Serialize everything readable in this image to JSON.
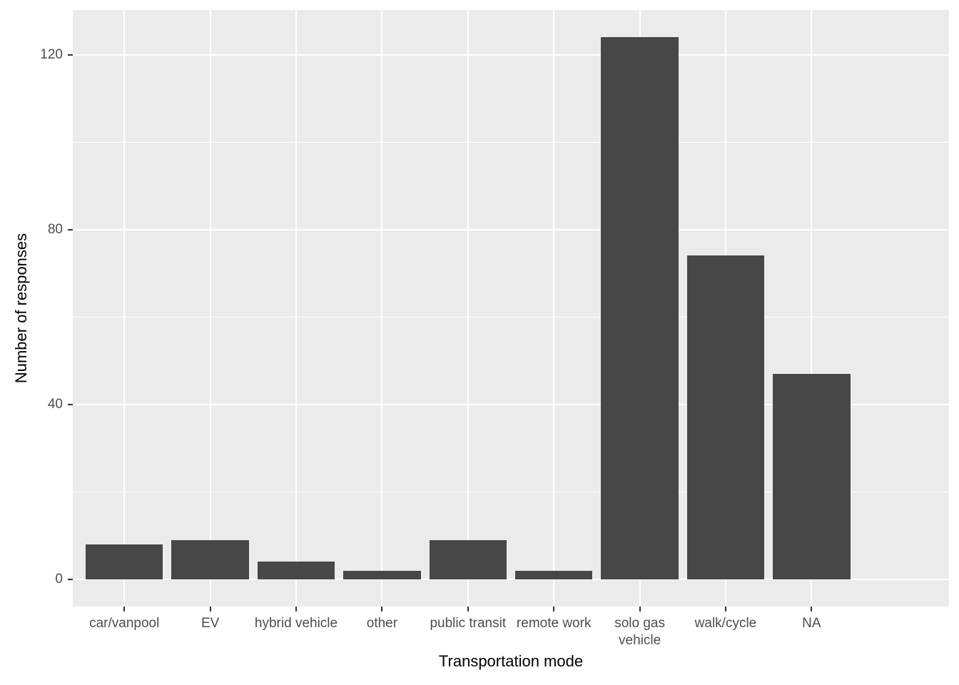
{
  "chart_data": {
    "type": "bar",
    "title": "",
    "xlabel": "Transportation mode",
    "ylabel": "Number of responses",
    "categories": [
      "car/vanpool",
      "EV",
      "hybrid vehicle",
      "other",
      "public transit",
      "remote work",
      "solo gas\nvehicle",
      "walk/cycle",
      "NA"
    ],
    "values": [
      8,
      9,
      4,
      2,
      9,
      2,
      124,
      74,
      47
    ],
    "y_ticks": [
      0,
      40,
      80,
      120
    ],
    "y_minor_ticks": [
      20,
      60,
      100
    ],
    "ylim": [
      -6.2,
      130.2
    ],
    "legend_position": "none",
    "grid": "white major and minor horizontal lines, white major vertical lines on gray panel",
    "colors": {
      "bar_fill": "#474747",
      "panel_bg": "#EBEBEB",
      "grid": "#FFFFFF",
      "tick_text": "#4D4D4D",
      "axis_title_text": "#000000",
      "tick_mark": "#333333",
      "figure_bg": "#FFFFFF"
    }
  }
}
